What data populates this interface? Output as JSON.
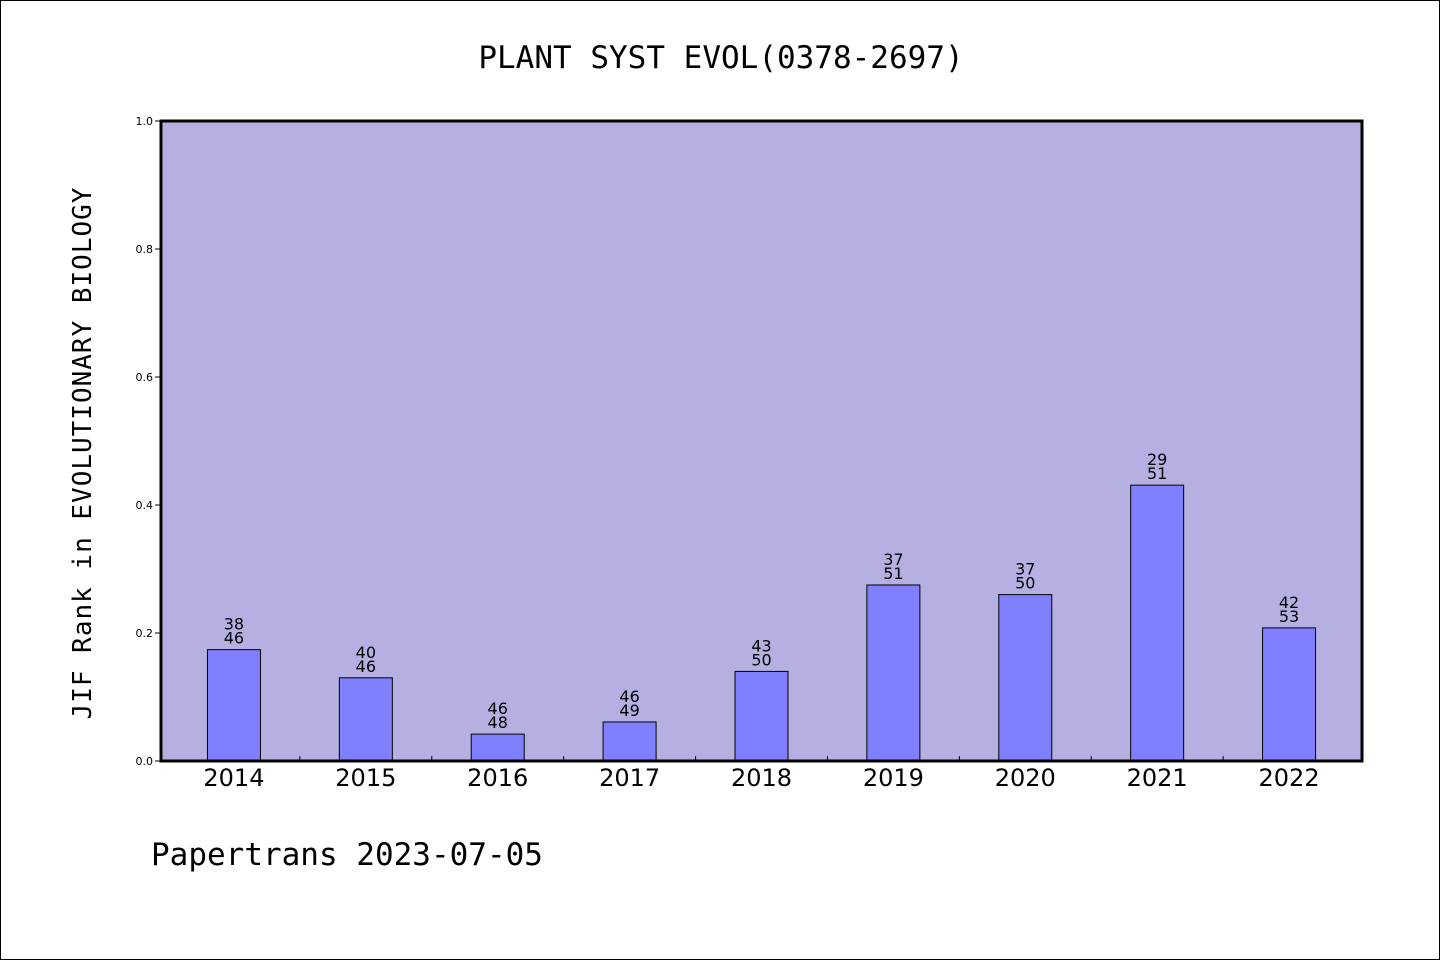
{
  "chart_data": {
    "type": "bar",
    "title": "PLANT SYST EVOL(0378-2697)",
    "xlabel": "",
    "ylabel": "JIF Rank in EVOLUTIONARY BIOLOGY",
    "ylim": [
      0,
      1.0
    ],
    "yticks": [
      "0.0",
      "0.2",
      "0.4",
      "0.6",
      "0.8",
      "1.0"
    ],
    "categories": [
      "2014",
      "2015",
      "2016",
      "2017",
      "2018",
      "2019",
      "2020",
      "2021",
      "2022"
    ],
    "values": [
      0.174,
      0.13,
      0.042,
      0.061,
      0.14,
      0.275,
      0.26,
      0.431,
      0.208
    ],
    "rank": [
      "38",
      "40",
      "46",
      "46",
      "43",
      "37",
      "37",
      "29",
      "42"
    ],
    "total": [
      "46",
      "46",
      "48",
      "49",
      "50",
      "51",
      "50",
      "51",
      "53"
    ],
    "grid": false,
    "legend": "none",
    "colors": {
      "plot_background": "#b6b0e2",
      "bar_fill": "#8080ff",
      "bar_stroke": "#000000"
    }
  },
  "footer": "Papertrans 2023-07-05"
}
